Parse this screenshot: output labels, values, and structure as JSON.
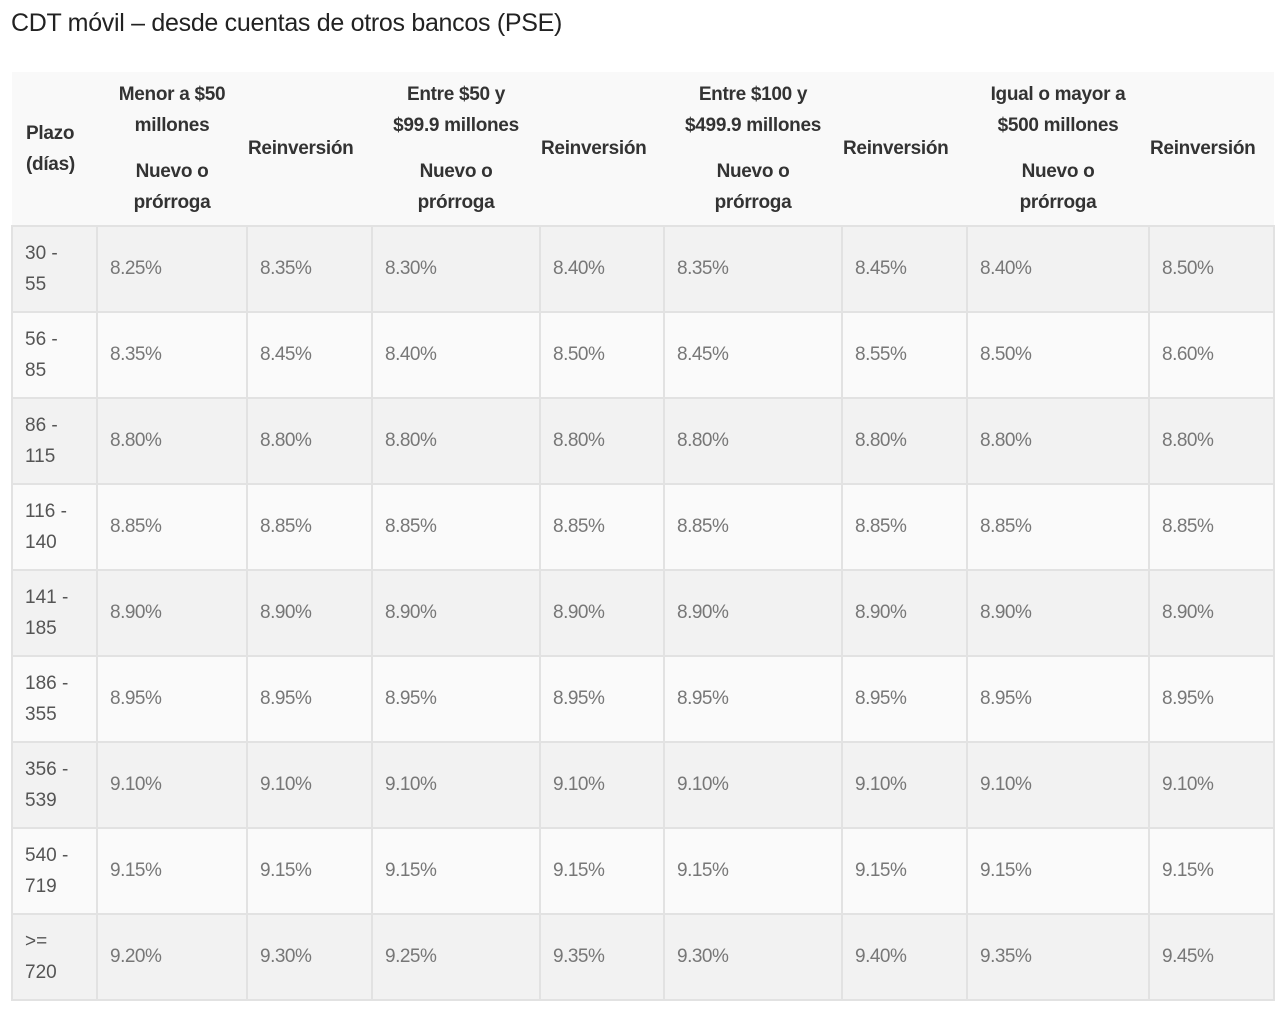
{
  "page": {
    "title": "CDT móvil – desde cuentas de otros bancos (PSE)"
  },
  "table": {
    "header": {
      "plazo_line1": "Plazo",
      "plazo_line2": "(días)",
      "groups": [
        {
          "line1": "Menor a $50",
          "line2": "millones",
          "sub_line1": "Nuevo o",
          "sub_line2": "prórroga",
          "reinversion": "Reinversión"
        },
        {
          "line1": "Entre $50 y",
          "line2": "$99.9 millones",
          "sub_line1": "Nuevo o",
          "sub_line2": "prórroga",
          "reinversion": "Reinversión"
        },
        {
          "line1": "Entre $100 y",
          "line2": "$499.9 millones",
          "sub_line1": "Nuevo o",
          "sub_line2": "prórroga",
          "reinversion": "Reinversión"
        },
        {
          "line1": "Igual o mayor a",
          "line2": "$500 millones",
          "sub_line1": "Nuevo o",
          "sub_line2": "prórroga",
          "reinversion": "Reinversión"
        }
      ]
    },
    "rows": [
      {
        "plazo_a": "30 -",
        "plazo_b": "55",
        "values": [
          "8.25%",
          "8.35%",
          "8.30%",
          "8.40%",
          "8.35%",
          "8.45%",
          "8.40%",
          "8.50%"
        ]
      },
      {
        "plazo_a": "56 -",
        "plazo_b": "85",
        "values": [
          "8.35%",
          "8.45%",
          "8.40%",
          "8.50%",
          "8.45%",
          "8.55%",
          "8.50%",
          "8.60%"
        ]
      },
      {
        "plazo_a": "86 -",
        "plazo_b": "115",
        "values": [
          "8.80%",
          "8.80%",
          "8.80%",
          "8.80%",
          "8.80%",
          "8.80%",
          "8.80%",
          "8.80%"
        ]
      },
      {
        "plazo_a": "116 -",
        "plazo_b": "140",
        "values": [
          "8.85%",
          "8.85%",
          "8.85%",
          "8.85%",
          "8.85%",
          "8.85%",
          "8.85%",
          "8.85%"
        ]
      },
      {
        "plazo_a": "141 -",
        "plazo_b": "185",
        "values": [
          "8.90%",
          "8.90%",
          "8.90%",
          "8.90%",
          "8.90%",
          "8.90%",
          "8.90%",
          "8.90%"
        ]
      },
      {
        "plazo_a": "186 -",
        "plazo_b": "355",
        "values": [
          "8.95%",
          "8.95%",
          "8.95%",
          "8.95%",
          "8.95%",
          "8.95%",
          "8.95%",
          "8.95%"
        ]
      },
      {
        "plazo_a": "356 -",
        "plazo_b": "539",
        "values": [
          "9.10%",
          "9.10%",
          "9.10%",
          "9.10%",
          "9.10%",
          "9.10%",
          "9.10%",
          "9.10%"
        ]
      },
      {
        "plazo_a": "540 -",
        "plazo_b": "719",
        "values": [
          "9.15%",
          "9.15%",
          "9.15%",
          "9.15%",
          "9.15%",
          "9.15%",
          "9.15%",
          "9.15%"
        ]
      },
      {
        "plazo_a": ">=",
        "plazo_b": "720",
        "values": [
          "9.20%",
          "9.30%",
          "9.25%",
          "9.35%",
          "9.30%",
          "9.40%",
          "9.35%",
          "9.45%"
        ]
      }
    ]
  },
  "colors": {
    "row_odd_bg": "#f2f2f2",
    "row_even_bg": "#fafafa",
    "header_bg": "#f9f9f9",
    "border": "#e2e2e2",
    "value_text": "#777777",
    "header_text": "#333333"
  }
}
